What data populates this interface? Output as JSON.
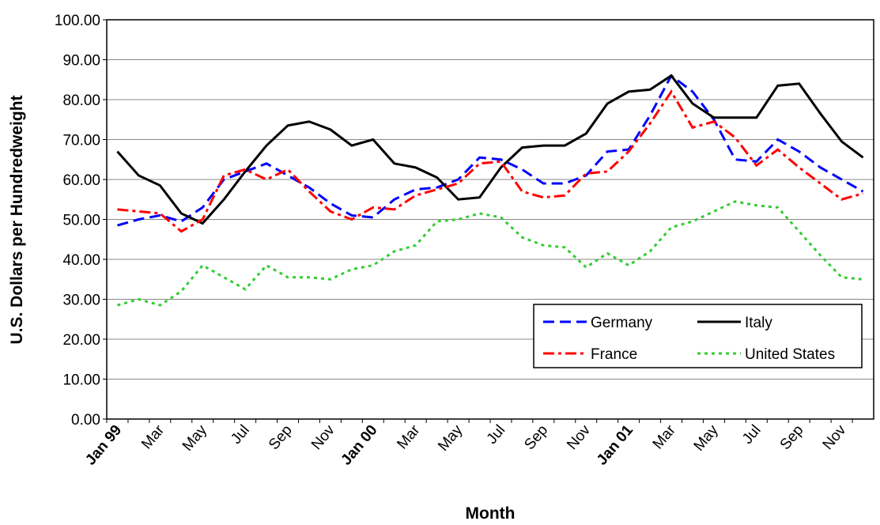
{
  "chart_data": {
    "type": "line",
    "x_label": "Month",
    "y_label": "U.S. Dollars per Hundredweight",
    "categories": [
      "Jan 99",
      null,
      "Mar",
      null,
      "May",
      null,
      "Jul",
      null,
      "Sep",
      null,
      "Nov",
      null,
      "Jan 00",
      null,
      "Mar",
      null,
      "May",
      null,
      "Jul",
      null,
      "Sep",
      null,
      "Nov",
      null,
      "Jan 01",
      null,
      "Mar",
      null,
      "May",
      null,
      "Jul",
      null,
      "Sep",
      null,
      "Nov",
      null
    ],
    "ylim": [
      0,
      100
    ],
    "yticks": [
      {
        "value": 0,
        "label": "0.00"
      },
      {
        "value": 10,
        "label": "10.00"
      },
      {
        "value": 20,
        "label": "20.00"
      },
      {
        "value": 30,
        "label": "30.00"
      },
      {
        "value": 40,
        "label": "40.00"
      },
      {
        "value": 50,
        "label": "50.00"
      },
      {
        "value": 60,
        "label": "60.00"
      },
      {
        "value": 70,
        "label": "70.00"
      },
      {
        "value": 80,
        "label": "80.00"
      },
      {
        "value": 90,
        "label": "90.00"
      },
      {
        "value": 100,
        "label": "100.00"
      }
    ],
    "grid": true,
    "legend": "lower right",
    "series": [
      {
        "name": "Germany",
        "color": "#0000ff",
        "values": [
          48.5,
          50,
          51,
          49.5,
          53,
          60,
          62,
          64,
          61,
          58,
          54,
          51,
          50.5,
          55,
          57.5,
          58,
          60,
          65.5,
          65,
          62.5,
          59,
          59,
          61,
          67,
          67.5,
          76,
          86,
          82,
          75,
          65,
          64.5,
          70,
          67,
          63,
          60,
          57
        ]
      },
      {
        "name": "Italy",
        "color": "#000000",
        "values": [
          67,
          61,
          58.5,
          51.5,
          49,
          55,
          62,
          68.5,
          73.5,
          74.5,
          72.5,
          68.5,
          70,
          64,
          63,
          60.5,
          55,
          55.5,
          63,
          68,
          68.5,
          68.5,
          71.5,
          79,
          82,
          82.5,
          86,
          79,
          75.5,
          75.5,
          75.5,
          83.5,
          84,
          76.5,
          69.5,
          65.5
        ]
      },
      {
        "name": "France",
        "color": "#ff0000",
        "values": [
          52.5,
          52,
          51.5,
          47,
          50,
          61,
          62.5,
          60,
          62.5,
          57,
          52,
          50,
          53,
          52.5,
          56,
          57.5,
          59,
          64,
          64.5,
          57,
          55.5,
          56,
          61.5,
          62,
          67,
          74,
          82,
          73,
          74.5,
          70.5,
          63.5,
          67.5,
          63,
          59,
          55,
          56.5
        ]
      },
      {
        "name": "United States",
        "color": "#33cc33",
        "values": [
          28.5,
          30,
          28.5,
          32,
          38.5,
          35.5,
          32.5,
          38.5,
          35.5,
          35.5,
          35,
          37.5,
          38.5,
          42,
          43.5,
          49.5,
          50,
          51.5,
          50.5,
          45.5,
          43.5,
          43,
          38,
          41.5,
          38.5,
          42,
          48,
          49.5,
          52,
          54.5,
          53.5,
          53,
          47,
          41,
          35.5,
          35
        ]
      }
    ]
  }
}
